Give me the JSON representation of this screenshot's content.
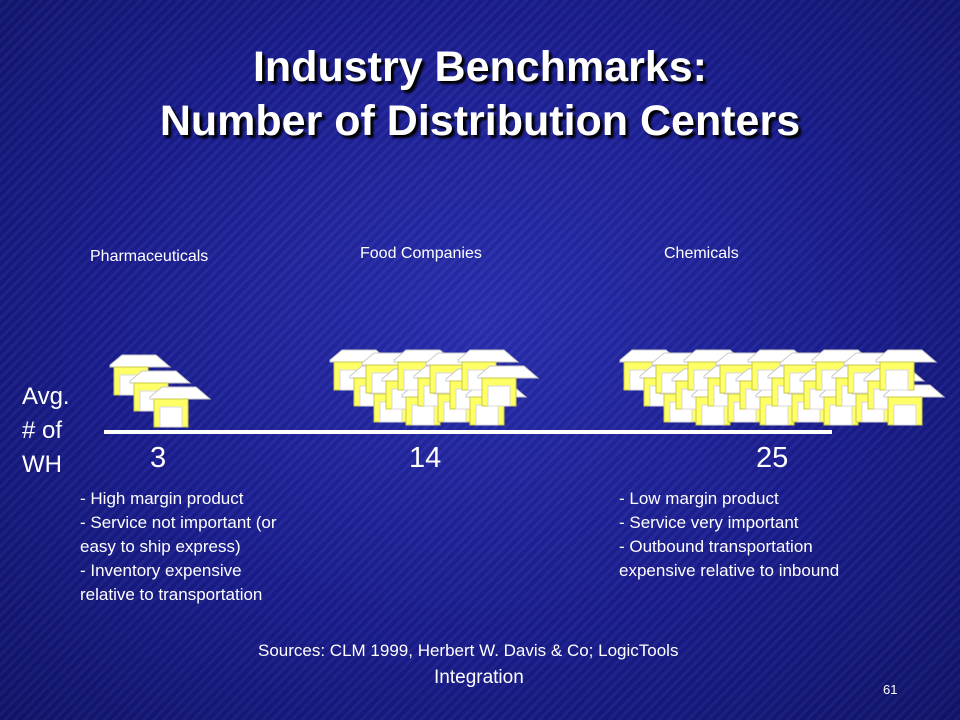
{
  "slide": {
    "title_line1": "Industry Benchmarks:",
    "title_line2": "Number of Distribution Centers",
    "y_label_lines": [
      "Avg.",
      "# of",
      "WH"
    ],
    "notes_left": [
      "- High margin product",
      "- Service not important (or",
      "easy to ship express)",
      "- Inventory expensive",
      "relative to transportation"
    ],
    "notes_right": [
      "- Low margin product",
      "- Service very important",
      "- Outbound transportation",
      "expensive relative to inbound"
    ],
    "source_line1": "Sources: CLM 1999, Herbert W. Davis & Co; LogicTools",
    "source_line2": "Integration",
    "slide_number": "61"
  },
  "chart_data": {
    "type": "bar",
    "categories": [
      "Pharmaceuticals",
      "Food Companies",
      "Chemicals"
    ],
    "values": [
      3,
      14,
      25
    ],
    "value_labels": [
      "3",
      "14",
      "25"
    ],
    "ylabel": "Avg. # of WH",
    "marker": "warehouse-icon",
    "colors": {
      "background": "#1a1d8f",
      "warehouse_wall": "#ffff66",
      "warehouse_roof": "#ffffff",
      "warehouse_door": "#ffffff",
      "axis": "#ffffff"
    }
  }
}
